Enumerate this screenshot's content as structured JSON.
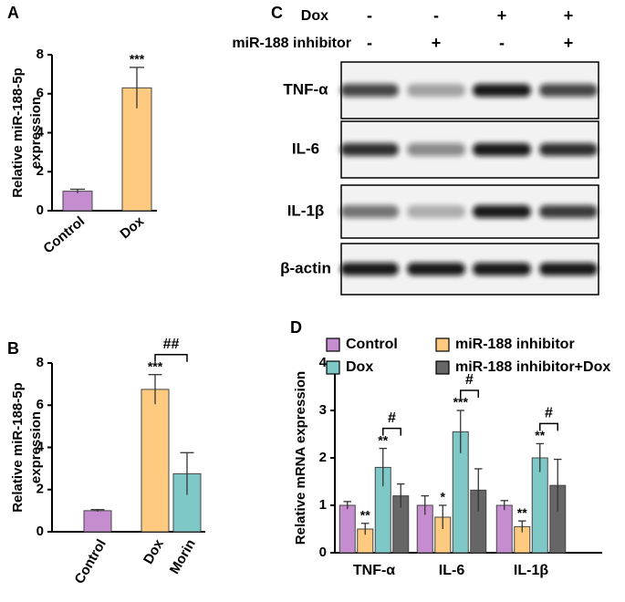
{
  "chart_data": [
    {
      "type": "bar",
      "panel": "A",
      "y_label": [
        "Relative miR-188-5p",
        "expression"
      ],
      "categories": [
        "Control",
        "Dox"
      ],
      "values": [
        1.0,
        6.3
      ],
      "errors": [
        0.1,
        1.05
      ],
      "colors": [
        "#c58ccf",
        "#fdca7f"
      ],
      "significance": [
        null,
        "***"
      ],
      "ylim": [
        0,
        8
      ],
      "yticks": [
        0,
        2,
        4,
        6,
        8
      ]
    },
    {
      "type": "bar",
      "panel": "B",
      "y_label": [
        "Relative miR-188-5p",
        "expression"
      ],
      "categories": [
        "Control",
        "Dox",
        "Morin"
      ],
      "values": [
        1.0,
        6.75,
        2.75
      ],
      "errors": [
        0.05,
        0.7,
        1.0
      ],
      "colors": [
        "#c58ccf",
        "#fdca7f",
        "#7ec9c7"
      ],
      "significance": [
        null,
        "***",
        null
      ],
      "brackets": [
        "##"
      ],
      "ylim": [
        0,
        8
      ],
      "yticks": [
        0,
        2,
        4,
        6,
        8
      ]
    },
    {
      "type": "grouped-bar",
      "panel": "D",
      "y_label": [
        "Relative mRNA expression"
      ],
      "categories": [
        "TNF-α",
        "IL-6",
        "IL-1β"
      ],
      "series": [
        {
          "name": "Control",
          "color": "#c58ccf",
          "values": [
            1.0,
            1.0,
            1.0
          ],
          "errors": [
            0.08,
            0.2,
            0.1
          ],
          "significance": [
            null,
            null,
            null
          ]
        },
        {
          "name": "miR-188 inhibitor",
          "color": "#fdca7f",
          "values": [
            0.5,
            0.75,
            0.55
          ],
          "errors": [
            0.12,
            0.25,
            0.12
          ],
          "significance": [
            "**",
            "*",
            "**"
          ]
        },
        {
          "name": "Dox",
          "color": "#7ec9c7",
          "values": [
            1.8,
            2.55,
            2.0
          ],
          "errors": [
            0.4,
            0.45,
            0.3
          ],
          "significance": [
            "**",
            "***",
            "**"
          ]
        },
        {
          "name": "miR-188 inhibitor+Dox",
          "color": "#666666",
          "values": [
            1.2,
            1.32,
            1.42
          ],
          "errors": [
            0.25,
            0.45,
            0.55
          ],
          "significance": [
            null,
            null,
            null
          ]
        }
      ],
      "brackets": [
        "#",
        "#",
        "#"
      ],
      "ylim": [
        0,
        4
      ],
      "yticks": [
        0,
        1,
        2,
        3,
        4
      ]
    }
  ],
  "blot": {
    "panel": "C",
    "column_headers": [
      {
        "label": "Dox",
        "signs": [
          "-",
          "-",
          "+",
          "+"
        ]
      },
      {
        "label": "miR-188 inhibitor",
        "signs": [
          "-",
          "+",
          "-",
          "+"
        ]
      }
    ],
    "rows": [
      "TNF-α",
      "IL-6",
      "IL-1β",
      "β-actin"
    ]
  }
}
